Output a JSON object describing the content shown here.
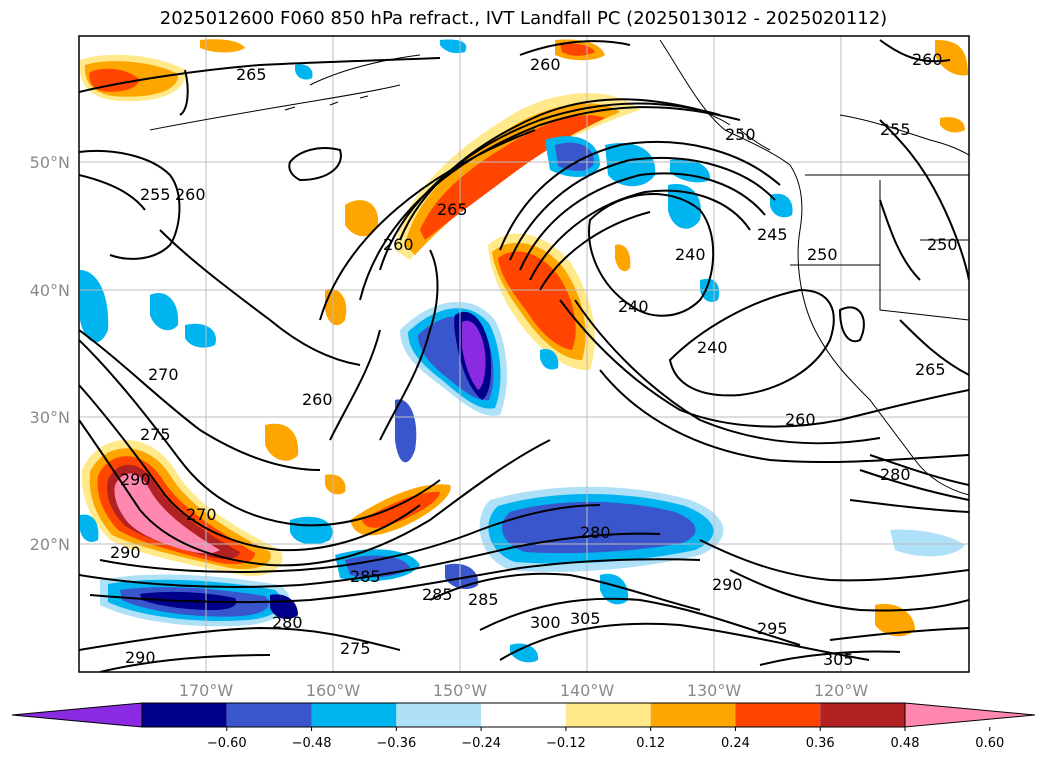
{
  "title": "2025012600 F060 850 hPa refract., IVT Landfall PC (2025013012 - 2025020112)",
  "lat_labels": [
    "50°N",
    "40°N",
    "30°N",
    "20°N"
  ],
  "lon_labels": [
    "170°W",
    "160°W",
    "150°W",
    "140°W",
    "130°W",
    "120°W"
  ],
  "colorbar": {
    "colors": [
      "#8a2be2",
      "#00008b",
      "#3a56cc",
      "#00b4f0",
      "#aee0f8",
      "#ffffff",
      "#ffe98a",
      "#ffa500",
      "#ff4500",
      "#b22222",
      "#ff88b0"
    ],
    "labels": [
      "−0.60",
      "−0.48",
      "−0.36",
      "−0.24",
      "−0.12",
      "0.12",
      "0.24",
      "0.36",
      "0.48",
      "0.60"
    ]
  },
  "contour_labels": [
    "265",
    "260",
    "255",
    "260",
    "265",
    "260",
    "250",
    "240",
    "245",
    "250",
    "255",
    "250",
    "240",
    "240",
    "270",
    "260",
    "275",
    "290",
    "270",
    "290",
    "285",
    "285",
    "285",
    "280",
    "275",
    "290",
    "290",
    "300",
    "305",
    "295",
    "305",
    "280",
    "260",
    "265",
    "280",
    "260"
  ]
}
